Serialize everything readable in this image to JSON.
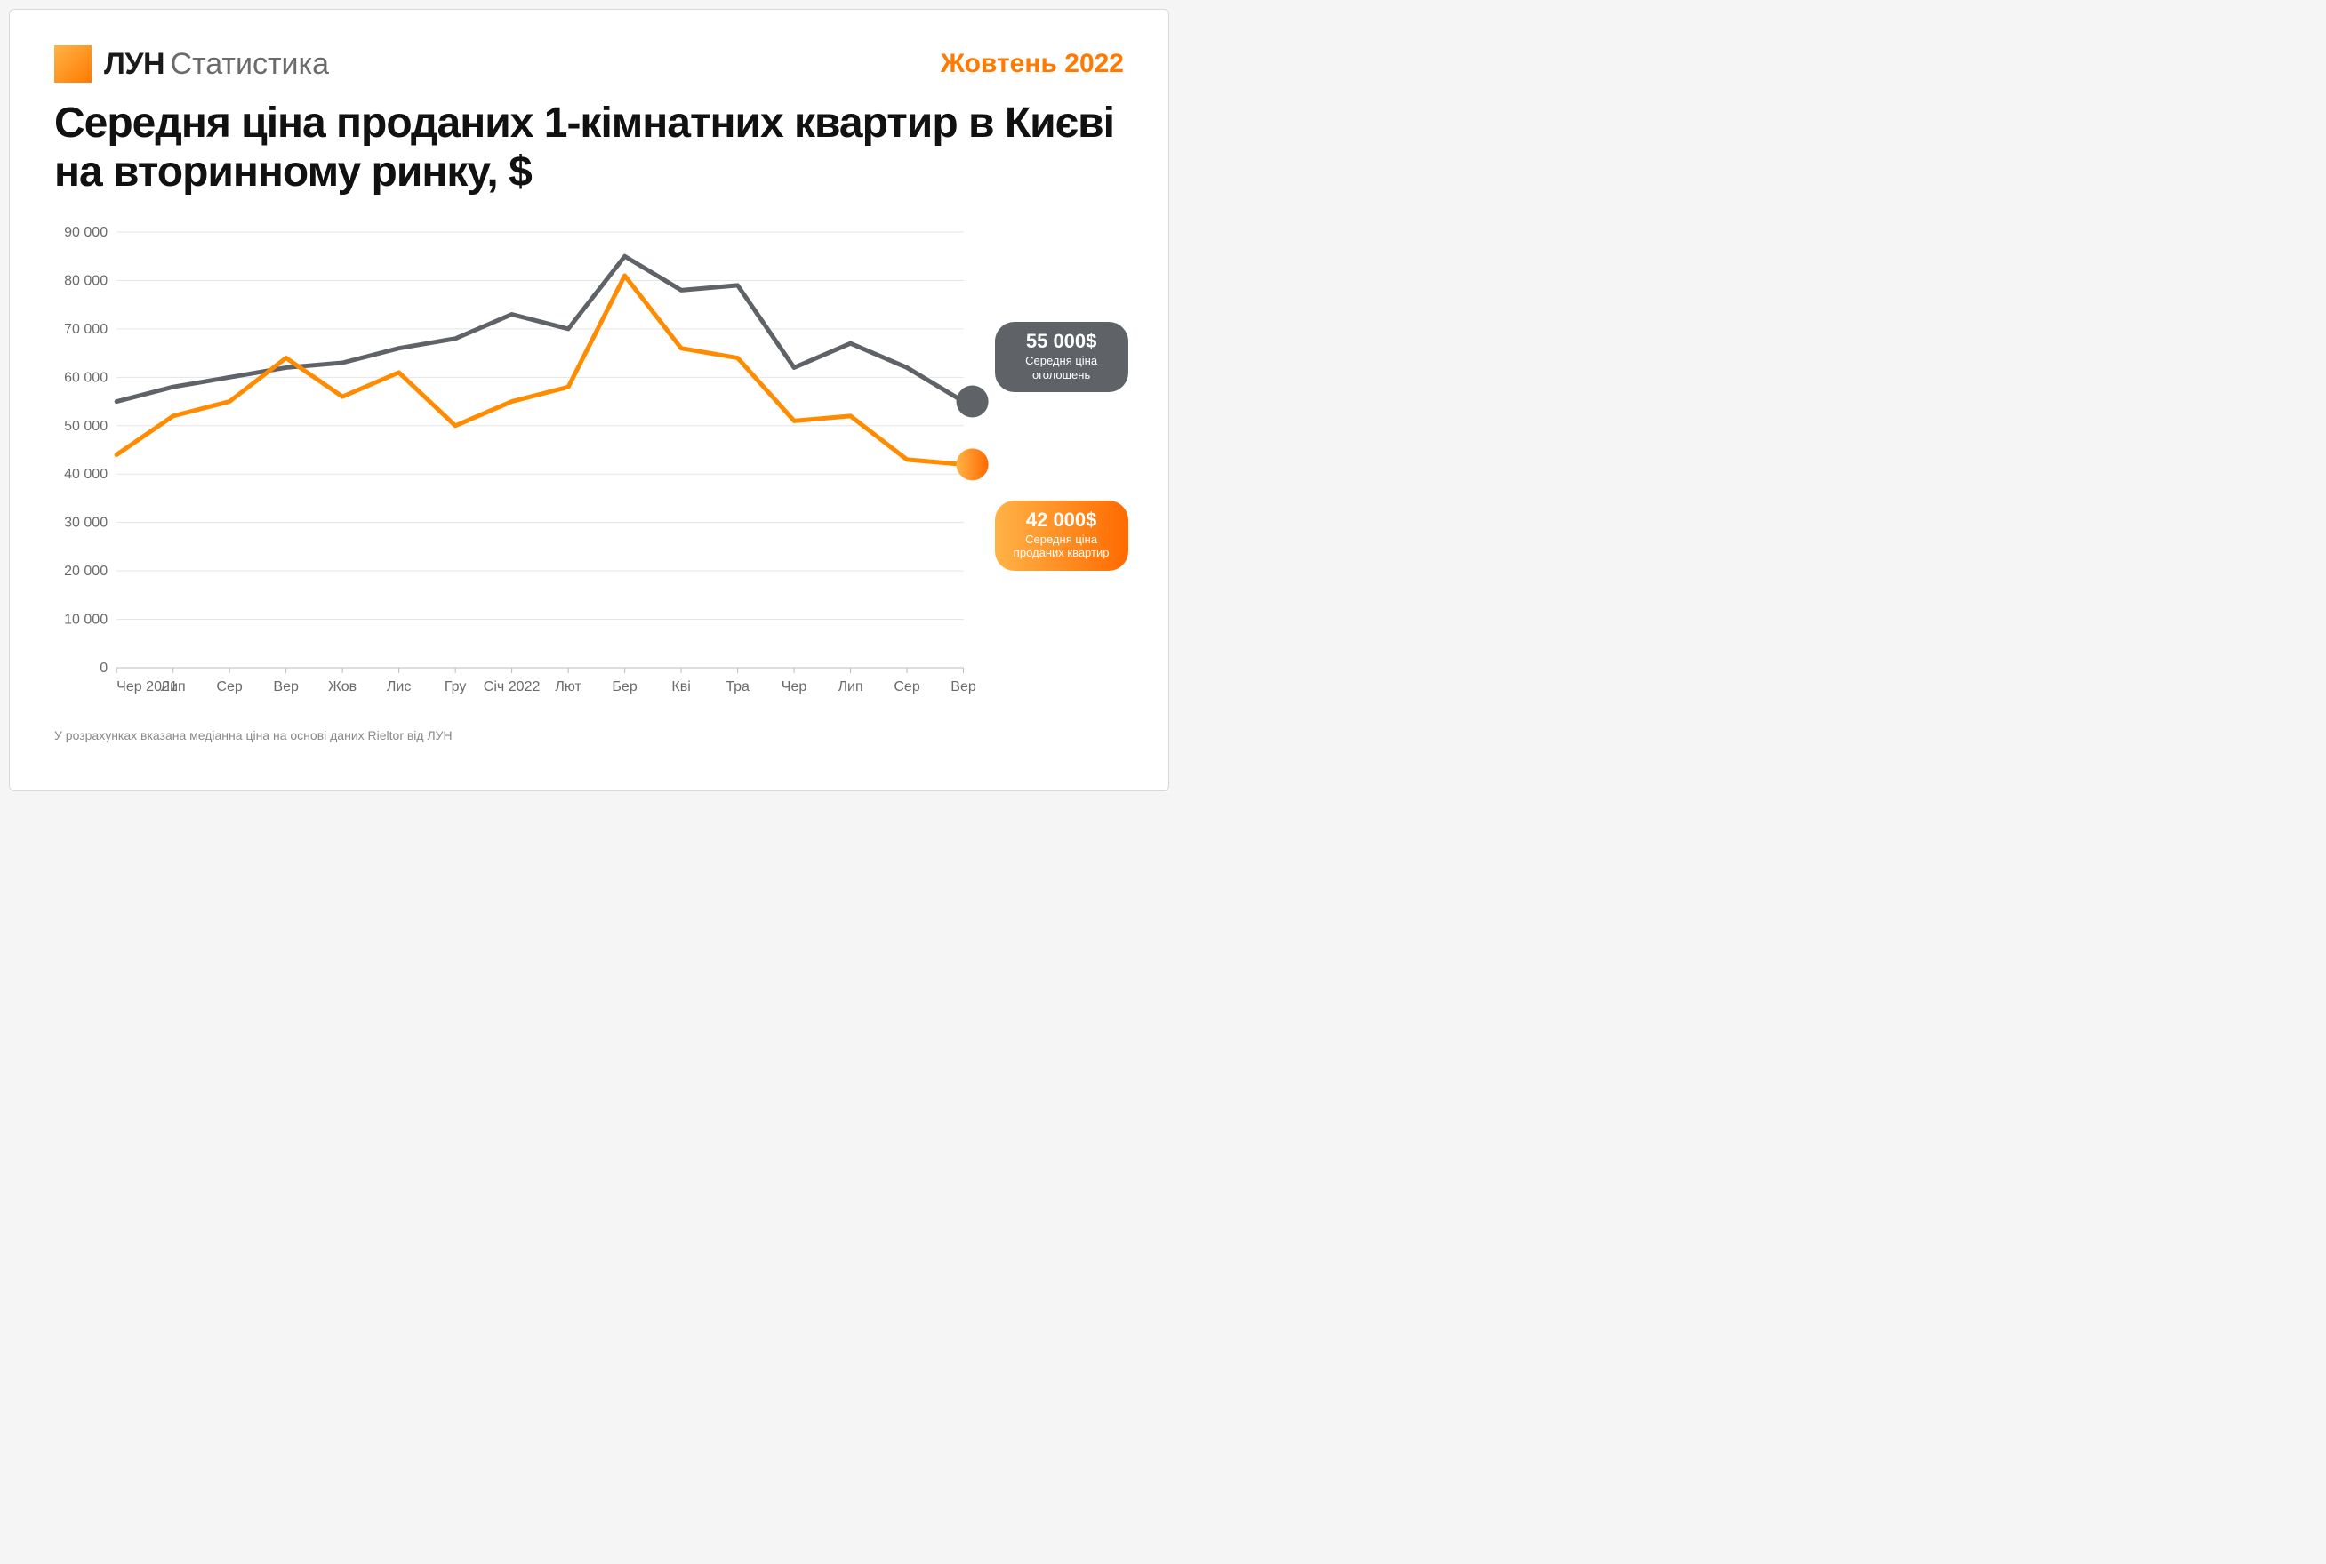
{
  "brand": {
    "name": "ЛУН",
    "sub": "Статистика"
  },
  "period": "Жовтень 2022",
  "title": "Середня ціна проданих 1-кімнатних квартир в Києві на вторинному ринку, $",
  "footnote": "У розрахунках вказана медіанна ціна на основі даних Rieltor від ЛУН",
  "chart": {
    "type": "line",
    "x_labels": [
      "Чер 2021",
      "Лип",
      "Сер",
      "Вер",
      "Жов",
      "Лис",
      "Гру",
      "Січ 2022",
      "Лют",
      "Бер",
      "Кві",
      "Тра",
      "Чер",
      "Лип",
      "Сер",
      "Вер"
    ],
    "y_min": 0,
    "y_max": 90000,
    "y_tick_step": 10000,
    "y_ticks": [
      "0",
      "10 000",
      "20 000",
      "30 000",
      "40 000",
      "50 000",
      "60 000",
      "70 000",
      "80 000",
      "90 000"
    ],
    "grid_color": "#e5e5e5",
    "axis_color": "#bcbcbc",
    "background_color": "#ffffff",
    "label_color": "#6b6b6b",
    "label_fontsize": 16,
    "line_width": 5,
    "series": [
      {
        "name": "listings",
        "color": "#5f6368",
        "values": [
          55000,
          58000,
          60000,
          62000,
          63000,
          66000,
          68000,
          73000,
          70000,
          85000,
          78000,
          79000,
          62000,
          67000,
          62000,
          55000
        ]
      },
      {
        "name": "sold",
        "color": "#ff8c00",
        "values": [
          44000,
          52000,
          55000,
          64000,
          56000,
          61000,
          50000,
          55000,
          58000,
          81000,
          66000,
          64000,
          51000,
          52000,
          43000,
          42000
        ]
      }
    ],
    "end_markers": [
      {
        "series": "listings",
        "color_fill": "#5f6368",
        "radius": 18
      },
      {
        "series": "sold",
        "color_fill_gradient": [
          "#ffb347",
          "#ff6a00"
        ],
        "radius": 18
      }
    ],
    "badges": [
      {
        "series": "listings",
        "value": "55 000$",
        "label": "Середня ціна оголошень",
        "bg": "#5f6368",
        "text_color": "#ffffff"
      },
      {
        "series": "sold",
        "value": "42 000$",
        "label": "Середня ціна проданих квартир",
        "bg_gradient": [
          "#ffb347",
          "#ff6a00"
        ],
        "text_color": "#ffffff"
      }
    ]
  }
}
